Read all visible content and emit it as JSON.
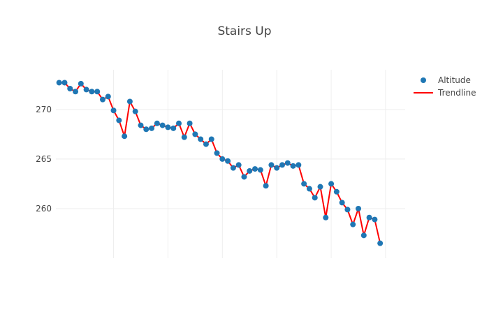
{
  "chart_data": {
    "type": "scatter",
    "title": "Stairs Up",
    "xlabel": "",
    "ylabel": "",
    "xlim": [
      -0.6,
      63.6
    ],
    "ylim": [
      255,
      274
    ],
    "xgrid": [
      10,
      20,
      30,
      40,
      50,
      60
    ],
    "yticks": [
      260,
      265,
      270
    ],
    "grid": true,
    "legend_position": "top-right",
    "series": [
      {
        "name": "Altitude",
        "mode": "markers",
        "color": "#1f77b4",
        "y": [
          272.7,
          272.7,
          272.1,
          271.8,
          272.6,
          272.0,
          271.8,
          271.8,
          271.0,
          271.3,
          269.9,
          268.9,
          267.3,
          270.8,
          269.8,
          268.4,
          268.0,
          268.1,
          268.6,
          268.4,
          268.2,
          268.1,
          268.6,
          267.2,
          268.6,
          267.5,
          267.0,
          266.5,
          267.0,
          265.6,
          265.0,
          264.8,
          264.1,
          264.4,
          263.2,
          263.8,
          264.0,
          263.9,
          262.3,
          264.4,
          264.1,
          264.4,
          264.6,
          264.3,
          264.4,
          262.5,
          262.0,
          261.1,
          262.2,
          259.1,
          262.5,
          261.7,
          260.6,
          259.9,
          258.4,
          260.0,
          257.3,
          259.1,
          258.9,
          256.5
        ]
      },
      {
        "name": "Trendline",
        "mode": "lines",
        "color": "#ff0000",
        "y": [
          272.7,
          272.7,
          272.1,
          271.8,
          272.6,
          272.0,
          271.8,
          271.8,
          271.0,
          271.3,
          269.9,
          268.9,
          267.3,
          270.8,
          269.8,
          268.4,
          268.0,
          268.1,
          268.6,
          268.4,
          268.2,
          268.1,
          268.6,
          267.2,
          268.6,
          267.5,
          267.0,
          266.5,
          267.0,
          265.6,
          265.0,
          264.8,
          264.1,
          264.4,
          263.2,
          263.8,
          264.0,
          263.9,
          262.3,
          264.4,
          264.1,
          264.4,
          264.6,
          264.3,
          264.4,
          262.5,
          262.0,
          261.1,
          262.2,
          259.1,
          262.5,
          261.7,
          260.6,
          259.9,
          258.4,
          260.0,
          257.3,
          259.1,
          258.9,
          256.5
        ]
      }
    ]
  }
}
